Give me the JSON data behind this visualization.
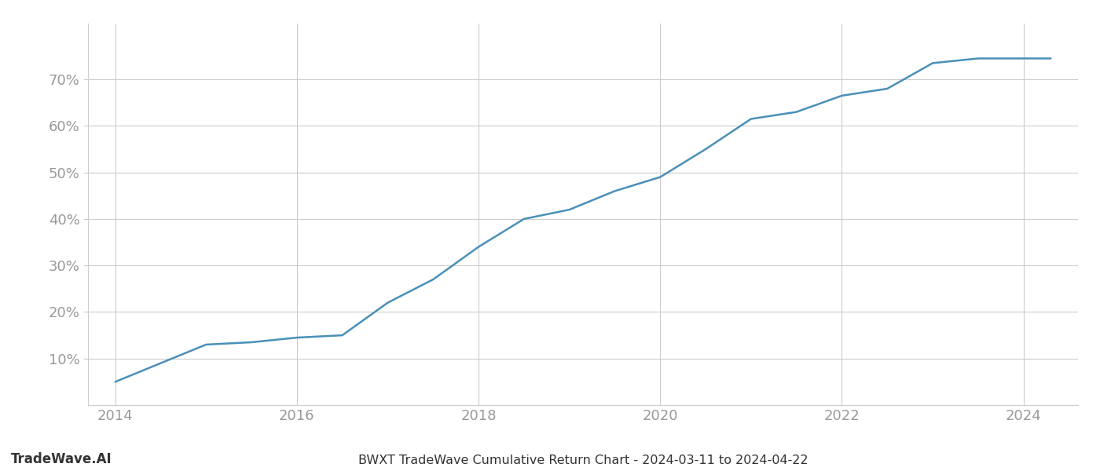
{
  "title": "BWXT TradeWave Cumulative Return Chart - 2024-03-11 to 2024-04-22",
  "watermark": "TradeWave.AI",
  "line_color": "#4a90b8",
  "line_width": 1.8,
  "background_color": "#ffffff",
  "grid_color": "#cccccc",
  "tick_label_color": "#999999",
  "bottom_text_color": "#333333",
  "x_years": [
    2014,
    2015,
    2015.5,
    2016,
    2016.5,
    2017,
    2017.5,
    2018,
    2018.5,
    2019,
    2019.5,
    2020,
    2020.5,
    2021,
    2021.5,
    2022,
    2022.5,
    2023,
    2023.5,
    2024,
    2024.3
  ],
  "y_values": [
    5,
    13,
    13.5,
    14.5,
    15,
    22,
    27,
    34,
    40,
    42,
    46,
    49,
    55,
    61.5,
    63,
    66.5,
    68,
    73.5,
    74.5,
    74.5,
    74.5
  ],
  "x_ticks": [
    2014,
    2016,
    2018,
    2020,
    2022,
    2024
  ],
  "y_ticks": [
    10,
    20,
    30,
    40,
    50,
    60,
    70
  ],
  "xlim": [
    2013.7,
    2024.6
  ],
  "ylim": [
    0,
    82
  ]
}
